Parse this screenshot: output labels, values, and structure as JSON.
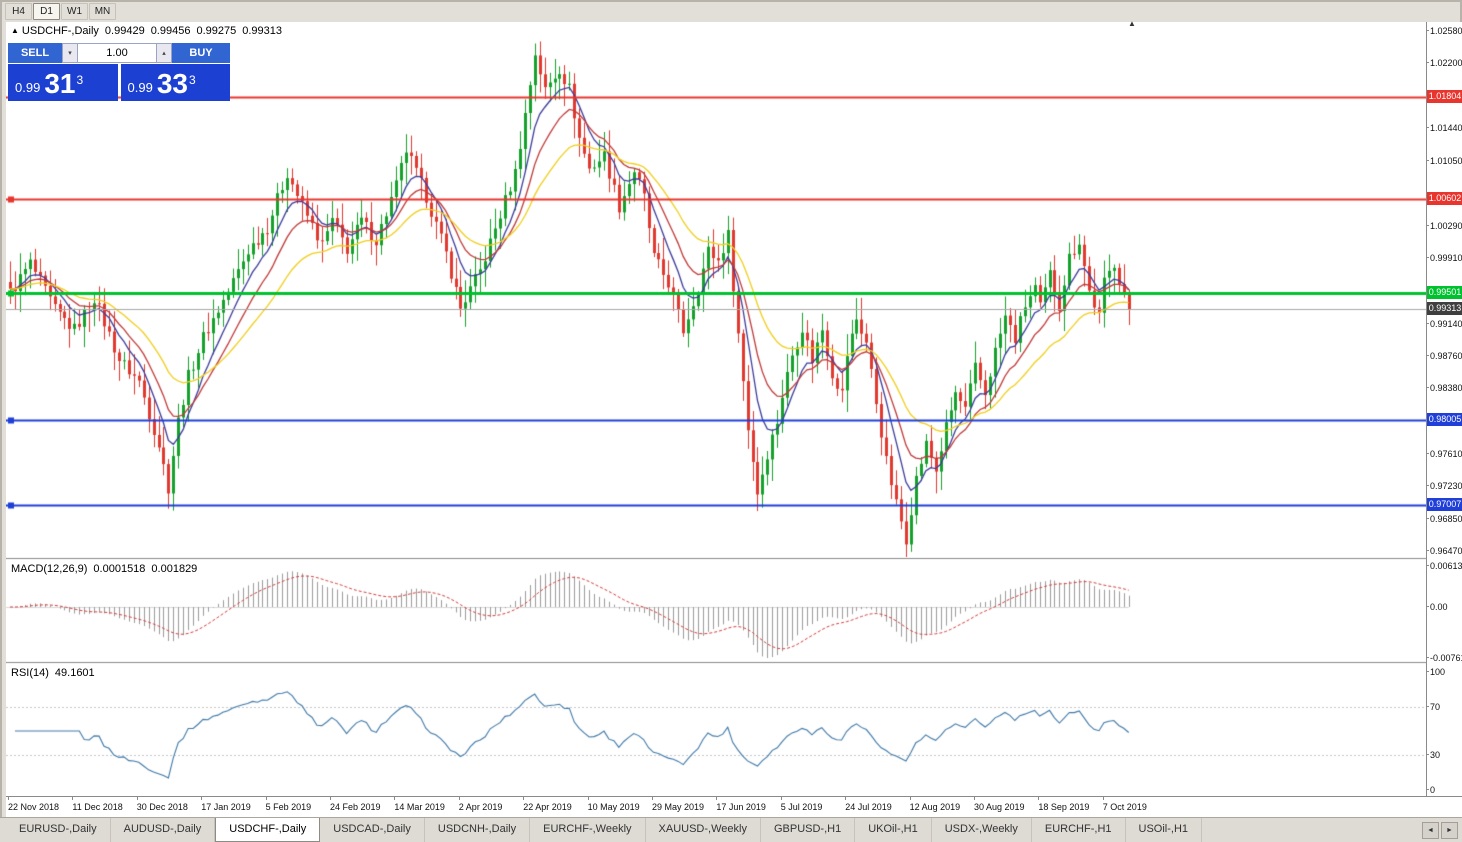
{
  "window": {
    "timeframes": [
      {
        "label": "H4",
        "active": false
      },
      {
        "label": "D1",
        "active": true
      },
      {
        "label": "W1",
        "active": false
      },
      {
        "label": "MN",
        "active": false
      }
    ],
    "shift_marker": "▲"
  },
  "chart_header": {
    "marker": "▲",
    "symbol": "USDCHF-,Daily",
    "open": "0.99429",
    "high": "0.99456",
    "low": "0.99275",
    "close": "0.99313"
  },
  "trade_panel": {
    "sell_label": "SELL",
    "buy_label": "BUY",
    "volume": "1.00",
    "dropdown_icon": "▾",
    "spin_up_icon": "▴",
    "bid": {
      "prefix": "0.99",
      "big": "31",
      "sup": "3"
    },
    "ask": {
      "prefix": "0.99",
      "big": "33",
      "sup": "3"
    }
  },
  "macd_panel": {
    "label": "MACD(12,26,9)",
    "value_main": "0.0001518",
    "value_signal": "0.001829"
  },
  "rsi_panel": {
    "label": "RSI(14)",
    "value": "49.1601"
  },
  "tab_bar": {
    "scroll_left": "◄",
    "scroll_right": "►",
    "tabs": [
      {
        "label": "EURUSD-,Daily",
        "active": false
      },
      {
        "label": "AUDUSD-,Daily",
        "active": false
      },
      {
        "label": "USDCHF-,Daily",
        "active": true
      },
      {
        "label": "USDCAD-,Daily",
        "active": false
      },
      {
        "label": "USDCNH-,Daily",
        "active": false
      },
      {
        "label": "EURCHF-,Weekly",
        "active": false
      },
      {
        "label": "XAUUSD-,Weekly",
        "active": false
      },
      {
        "label": "GBPUSD-,H1",
        "active": false
      },
      {
        "label": "UKOil-,H1",
        "active": false
      },
      {
        "label": "USDX-,Weekly",
        "active": false
      },
      {
        "label": "EURCHF-,H1",
        "active": false
      },
      {
        "label": "USOil-,H1",
        "active": false
      }
    ]
  },
  "chart_data": {
    "type": "candlestick",
    "symbol": "USDCHF",
    "timeframe": "Daily",
    "bars": 227,
    "price_range_visible": [
      0.9647,
      1.0258
    ],
    "ohlc_current": {
      "open": 0.99429,
      "high": 0.99456,
      "low": 0.99275,
      "close": 0.99313
    },
    "price_axis_ticks": [
      {
        "label": "1.02580",
        "value": 1.0258
      },
      {
        "label": "1.02200",
        "value": 1.022
      },
      {
        "label": "1.01440",
        "value": 1.0144
      },
      {
        "label": "1.01050",
        "value": 1.0105
      },
      {
        "label": "1.00290",
        "value": 1.0029
      },
      {
        "label": "0.99910",
        "value": 0.9991
      },
      {
        "label": "0.99140",
        "value": 0.9914
      },
      {
        "label": "0.98760",
        "value": 0.9876
      },
      {
        "label": "0.98380",
        "value": 0.9838
      },
      {
        "label": "0.97610",
        "value": 0.9761
      },
      {
        "label": "0.97230",
        "value": 0.9723
      },
      {
        "label": "0.96850",
        "value": 0.9685
      },
      {
        "label": "0.96470",
        "value": 0.9647
      }
    ],
    "h_lines": [
      {
        "label": "1.01804",
        "price": 1.01804,
        "color": "#e8352e",
        "width": 2,
        "handle": false
      },
      {
        "label": "1.00602",
        "price": 1.00602,
        "color": "#e8352e",
        "width": 2,
        "handle": true
      },
      {
        "label": "0.99501",
        "price": 0.99501,
        "color": "#00c22e",
        "width": 3,
        "handle": true
      },
      {
        "label": "0.98005",
        "price": 0.98005,
        "color": "#1f3fd8",
        "width": 2,
        "handle": true
      },
      {
        "label": "0.97007",
        "price": 0.97007,
        "color": "#1f3fd8",
        "width": 2,
        "handle": true
      }
    ],
    "current_price": {
      "value": 0.99313,
      "label": "0.99313",
      "badge_color": "#3f3f3f",
      "line_color": "#a8a8a8"
    },
    "moving_averages": [
      {
        "period": 7,
        "color": "#3c3c9c"
      },
      {
        "period": 13,
        "color": "#c03a3a"
      },
      {
        "period": 26,
        "color": "#f0cf1d"
      }
    ],
    "candle_up_color": "#15a12b",
    "candle_down_color": "#e0392f",
    "macd": {
      "params": [
        12,
        26,
        9
      ],
      "hist_color": "#9c9c9c",
      "signal_color": "#d23f3f",
      "axis": [
        {
          "label": "0.00613",
          "value": 0.00613
        },
        {
          "label": "0.00",
          "value": 0
        },
        {
          "label": "-0.00761",
          "value": -0.00761
        }
      ]
    },
    "rsi": {
      "period": 14,
      "color": "#4079a8",
      "levels": [
        70,
        30
      ],
      "axis": [
        {
          "label": "100",
          "value": 100
        },
        {
          "label": "70",
          "value": 70
        },
        {
          "label": "30",
          "value": 30
        },
        {
          "label": "0",
          "value": 0
        }
      ]
    },
    "date_labels": [
      "22 Nov 2018",
      "11 Dec 2018",
      "30 Dec 2018",
      "17 Jan 2019",
      "5 Feb 2019",
      "24 Feb 2019",
      "14 Mar 2019",
      "2 Apr 2019",
      "22 Apr 2019",
      "10 May 2019",
      "29 May 2019",
      "17 Jun 2019",
      "5 Jul 2019",
      "24 Jul 2019",
      "12 Aug 2019",
      "30 Aug 2019",
      "18 Sep 2019",
      "7 Oct 2019"
    ],
    "close_waypoints": [
      [
        0,
        0.995
      ],
      [
        4,
        0.9985
      ],
      [
        9,
        0.993
      ],
      [
        13,
        0.9907
      ],
      [
        17,
        0.9945
      ],
      [
        22,
        0.9872
      ],
      [
        26,
        0.9846
      ],
      [
        30,
        0.9772
      ],
      [
        32,
        0.9722
      ],
      [
        34,
        0.98
      ],
      [
        36,
        0.9852
      ],
      [
        39,
        0.9898
      ],
      [
        44,
        0.9952
      ],
      [
        48,
        1.0
      ],
      [
        52,
        1.0028
      ],
      [
        56,
        1.0092
      ],
      [
        59,
        1.0052
      ],
      [
        63,
        1.0006
      ],
      [
        65,
        1.0035
      ],
      [
        68,
        1.0002
      ],
      [
        71,
        1.0035
      ],
      [
        74,
        1.0012
      ],
      [
        78,
        1.0076
      ],
      [
        80,
        1.0118
      ],
      [
        84,
        1.0064
      ],
      [
        88,
        0.9996
      ],
      [
        91,
        0.9932
      ],
      [
        95,
        0.9976
      ],
      [
        99,
        1.0042
      ],
      [
        102,
        1.0092
      ],
      [
        104,
        1.016
      ],
      [
        106,
        1.0232
      ],
      [
        108,
        1.0188
      ],
      [
        111,
        1.0214
      ],
      [
        113,
        1.019
      ],
      [
        115,
        1.0132
      ],
      [
        117,
        1.0096
      ],
      [
        120,
        1.0112
      ],
      [
        123,
        1.0052
      ],
      [
        126,
        1.0094
      ],
      [
        128,
        1.0062
      ],
      [
        130,
        0.9992
      ],
      [
        133,
        0.9962
      ],
      [
        136,
        0.9906
      ],
      [
        139,
        0.9956
      ],
      [
        141,
        1.0
      ],
      [
        143,
        0.9988
      ],
      [
        145,
        1.0018
      ],
      [
        147,
        0.9902
      ],
      [
        149,
        0.9792
      ],
      [
        151,
        0.9716
      ],
      [
        153,
        0.9762
      ],
      [
        155,
        0.98
      ],
      [
        156,
        0.983
      ],
      [
        158,
        0.9878
      ],
      [
        160,
        0.991
      ],
      [
        162,
        0.9872
      ],
      [
        164,
        0.9908
      ],
      [
        166,
        0.9856
      ],
      [
        168,
        0.9832
      ],
      [
        169,
        0.9878
      ],
      [
        171,
        0.992
      ],
      [
        173,
        0.9892
      ],
      [
        175,
        0.9822
      ],
      [
        177,
        0.9752
      ],
      [
        179,
        0.9702
      ],
      [
        181,
        0.9662
      ],
      [
        183,
        0.9732
      ],
      [
        185,
        0.9772
      ],
      [
        187,
        0.9742
      ],
      [
        189,
        0.9792
      ],
      [
        191,
        0.9832
      ],
      [
        193,
        0.9812
      ],
      [
        195,
        0.9862
      ],
      [
        197,
        0.9832
      ],
      [
        199,
        0.9882
      ],
      [
        201,
        0.9922
      ],
      [
        203,
        0.9896
      ],
      [
        205,
        0.9936
      ],
      [
        207,
        0.9956
      ],
      [
        208,
        0.9932
      ],
      [
        210,
        0.9972
      ],
      [
        212,
        0.9936
      ],
      [
        214,
        0.9992
      ],
      [
        216,
        1.0012
      ],
      [
        218,
        0.9952
      ],
      [
        220,
        0.9922
      ],
      [
        221,
        0.9962
      ],
      [
        223,
        0.9986
      ],
      [
        226,
        0.9931
      ]
    ]
  }
}
